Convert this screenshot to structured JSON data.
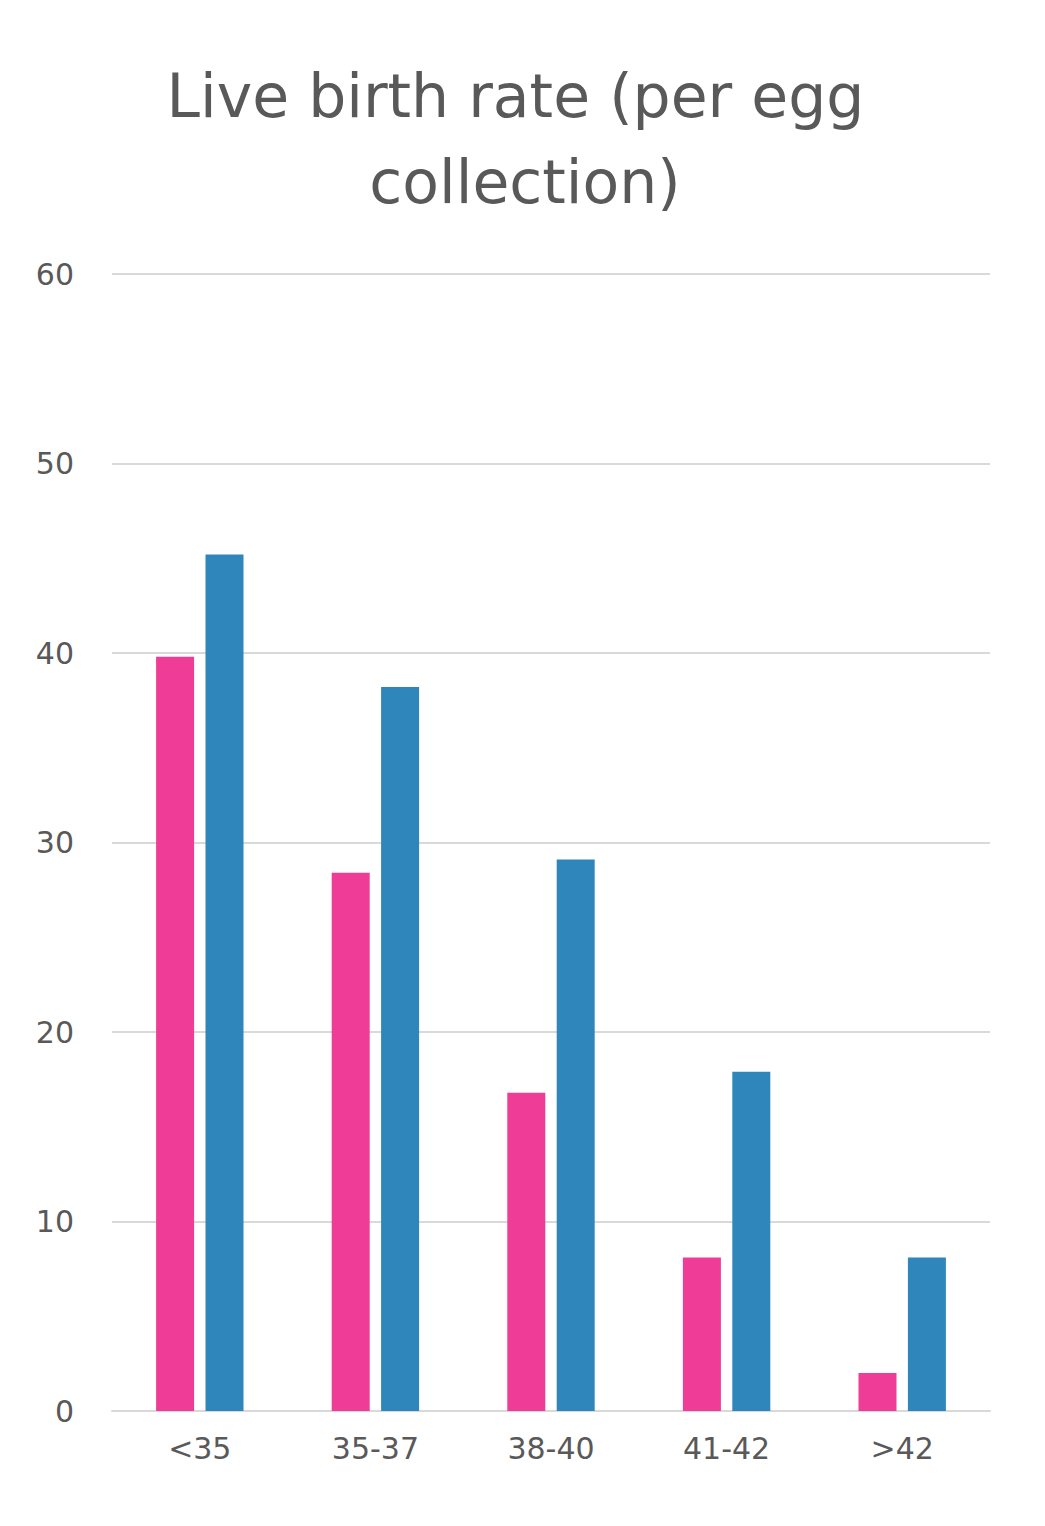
{
  "chart_data": {
    "type": "bar",
    "title": "Live birth rate (per egg collection)",
    "categories": [
      "<35",
      "35-37",
      "38-40",
      "41-42",
      ">42"
    ],
    "series": [
      {
        "color": "#ef3c96",
        "values": [
          39.8,
          28.4,
          16.8,
          8.1,
          2.0
        ]
      },
      {
        "color": "#2e86ba",
        "values": [
          45.2,
          38.2,
          29.1,
          17.9,
          8.1
        ]
      }
    ],
    "ylim": [
      0,
      60
    ],
    "yticks": [
      0,
      10,
      20,
      30,
      40,
      50,
      60
    ],
    "grid": true
  }
}
